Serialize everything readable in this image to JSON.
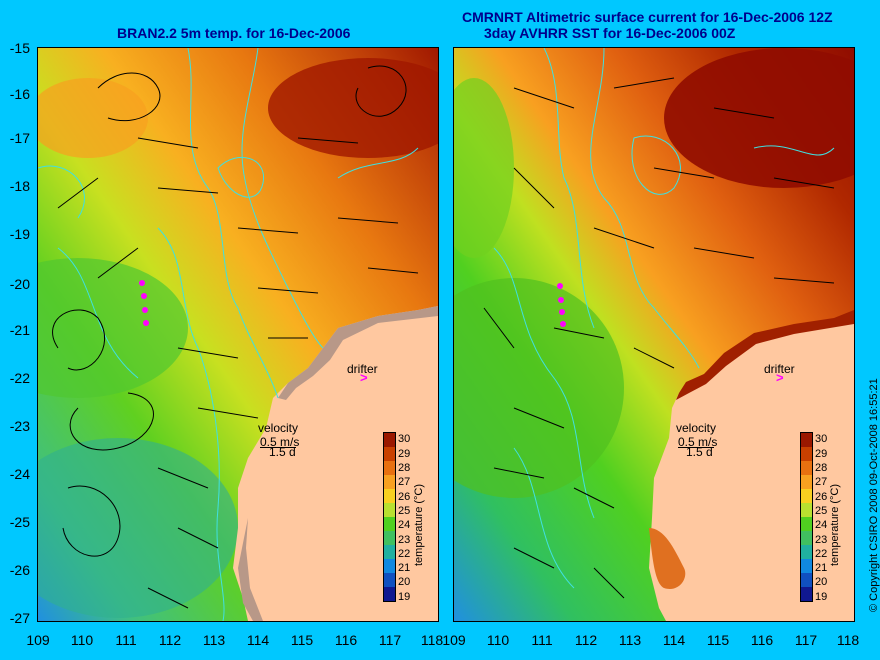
{
  "left_title": "BRAN2.2 5m temp. for 16-Dec-2006",
  "right_title_line1": "CMRNRT Altimetric surface current for 16-Dec-2006 12Z",
  "right_title_line2": "3day AVHRR SST for 16-Dec-2006 00Z",
  "y_ticks": [
    "-15",
    "-16",
    "-17",
    "-18",
    "-19",
    "-20",
    "-21",
    "-22",
    "-23",
    "-24",
    "-25",
    "-26",
    "-27"
  ],
  "x_ticks": [
    "109",
    "110",
    "111",
    "112",
    "113",
    "114",
    "115",
    "116",
    "117",
    "118"
  ],
  "drifter_label": "drifter",
  "drifter_symbol": ">",
  "velocity_label": "velocity",
  "velocity_scale": "0.5 m/s",
  "velocity_time": "1.5 d",
  "colorbar": {
    "label": "temperature (°C)",
    "ticks": [
      "30",
      "29",
      "28",
      "27",
      "26",
      "25",
      "24",
      "23",
      "22",
      "21",
      "20",
      "19"
    ],
    "colors": [
      "#9a1800",
      "#c84000",
      "#e87010",
      "#f8a020",
      "#f8d020",
      "#b8e030",
      "#50d020",
      "#40c060",
      "#20b0a0",
      "#1088e0",
      "#1050c0",
      "#101890"
    ]
  },
  "copyright": "© Copyright CSIRO 2008   09-Oct-2008 16:55:21",
  "colors": {
    "background": "#00c8ff",
    "land": "#ffc8a0",
    "coast_band": "#b89888",
    "contour": "#40e0e0",
    "drifter": "#ff00ff",
    "title": "#00008b"
  }
}
